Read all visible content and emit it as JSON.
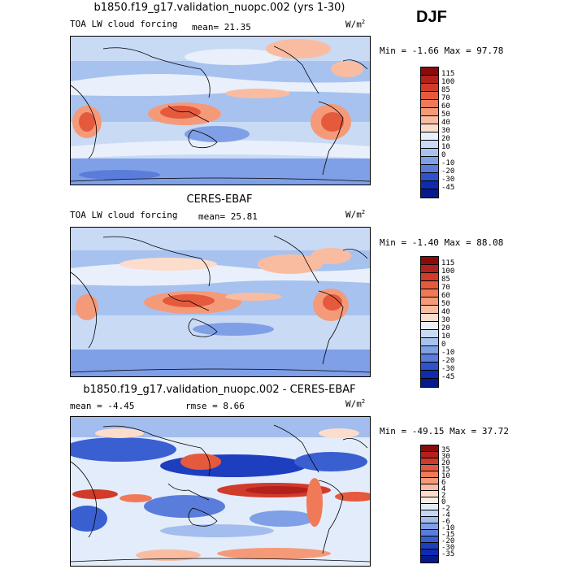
{
  "season": "DJF",
  "units_base": "W/m",
  "units_exp": "2",
  "panels": [
    {
      "title": "b1850.f19_g17.validation_nuopc.002 (yrs 1-30)",
      "variable": "TOA LW cloud forcing",
      "mean_text": "mean=  21.35",
      "minmax_text": "Min =  -1.66 Max =  97.78",
      "levels": [
        "115",
        "100",
        "85",
        "70",
        "60",
        "50",
        "40",
        "30",
        "20",
        "10",
        "0",
        "-10",
        "-20",
        "-30",
        "-45"
      ],
      "colors": [
        "#8c0a0a",
        "#b3211e",
        "#d13b2a",
        "#e55a3c",
        "#f07a57",
        "#f59a78",
        "#f9bca1",
        "#fcdccb",
        "#e9f0fb",
        "#c9daf5",
        "#a7c2ef",
        "#7f9fe6",
        "#5a7ddb",
        "#2f53cc",
        "#0e2cb0",
        "#071a8a"
      ]
    },
    {
      "title": "CERES-EBAF",
      "variable": "TOA LW cloud forcing",
      "mean_text": "mean=  25.81",
      "minmax_text": "Min =  -1.40 Max =  88.08",
      "levels": [
        "115",
        "100",
        "85",
        "70",
        "60",
        "50",
        "40",
        "30",
        "20",
        "10",
        "0",
        "-10",
        "-20",
        "-30",
        "-45"
      ],
      "colors": [
        "#8c0a0a",
        "#b3211e",
        "#d13b2a",
        "#e55a3c",
        "#f07a57",
        "#f59a78",
        "#f9bca1",
        "#fcdccb",
        "#e9f0fb",
        "#c9daf5",
        "#a7c2ef",
        "#7f9fe6",
        "#5a7ddb",
        "#2f53cc",
        "#0e2cb0",
        "#071a8a"
      ]
    },
    {
      "title": "b1850.f19_g17.validation_nuopc.002 - CERES-EBAF",
      "mean_text": "mean =   -4.45",
      "rmse_text": "rmse =    8.66",
      "minmax_text": "Min = -49.15 Max =  37.72",
      "levels": [
        "35",
        "30",
        "20",
        "15",
        "10",
        "6",
        "4",
        "2",
        "0",
        "-2",
        "-4",
        "-6",
        "-10",
        "-15",
        "-20",
        "-30",
        "-35"
      ],
      "colors": [
        "#8c0a0a",
        "#b3211e",
        "#d13b2a",
        "#e55a3c",
        "#f07a57",
        "#f59a78",
        "#f9bca1",
        "#fcdccb",
        "#fdeee4",
        "#e3ecfa",
        "#c5d7f4",
        "#a3bdee",
        "#7f9fe6",
        "#5a7ddb",
        "#3a5fd1",
        "#1e3ec0",
        "#0e2cb0",
        "#071a8a"
      ]
    }
  ]
}
